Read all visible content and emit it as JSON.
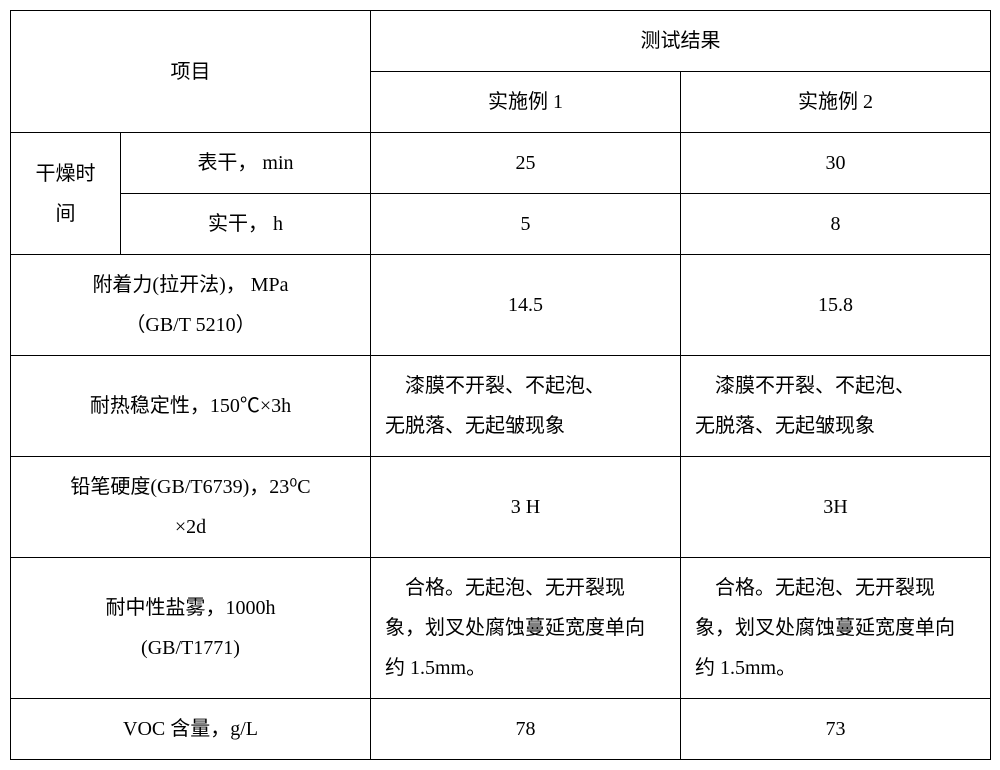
{
  "header": {
    "project": "项目",
    "results": "测试结果",
    "example1": "实施例 1",
    "example2": "实施例 2"
  },
  "rows": {
    "dryTime": {
      "label": "干燥时\n间",
      "surfaceDry": "表干，   min",
      "surfaceDry_v1": "25",
      "surfaceDry_v2": "30",
      "hardDry": "实干，   h",
      "hardDry_v1": "5",
      "hardDry_v2": "8"
    },
    "adhesion": {
      "label": "附着力(拉开法)，  MPa\n（GB/T 5210）",
      "v1": "14.5",
      "v2": "15.8"
    },
    "heat": {
      "label": "耐热稳定性，150℃×3h",
      "v1": "　漆膜不开裂、不起泡、\n无脱落、无起皱现象",
      "v2": "　漆膜不开裂、不起泡、\n无脱落、无起皱现象"
    },
    "pencil": {
      "label": "铅笔硬度(GB/T6739)，23⁰C\n×2d",
      "v1": "3 H",
      "v2": "3H"
    },
    "salt": {
      "label": "耐中性盐雾，1000h\n(GB/T1771)",
      "v1": "　合格。无起泡、无开裂现\n象，划叉处腐蚀蔓延宽度单向\n约 1.5mm。",
      "v2": "　合格。无起泡、无开裂现\n象，划叉处腐蚀蔓延宽度单向\n约 1.5mm。"
    },
    "voc": {
      "label": "VOC 含量，g/L",
      "v1": "78",
      "v2": "73"
    }
  }
}
